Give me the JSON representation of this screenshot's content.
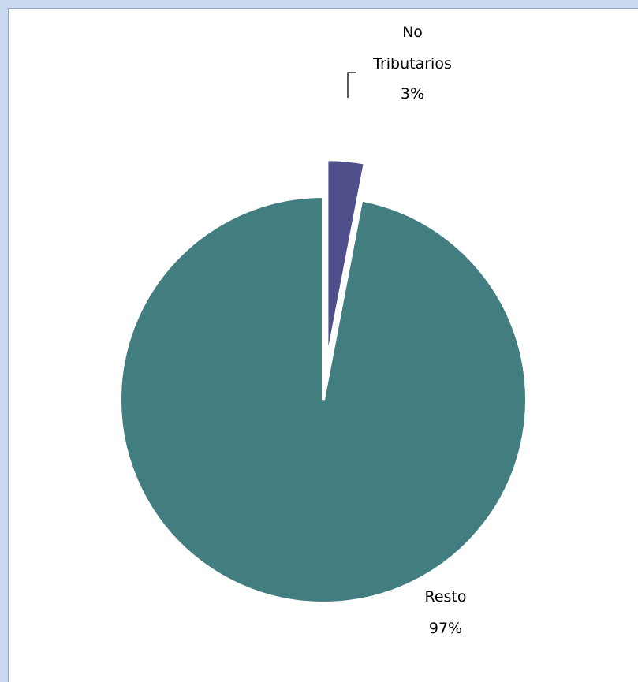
{
  "chart_data": {
    "type": "pie",
    "title": "",
    "legend": "none",
    "exploded": true,
    "start_angle": "12 o'clock, clockwise",
    "slices": [
      {
        "label_lines": [
          "No",
          "Tributarios"
        ],
        "value": 3,
        "value_label": "3%",
        "color": "#4f4f8b"
      },
      {
        "label_lines": [
          "Resto"
        ],
        "value": 97,
        "value_label": "97%",
        "color": "#427e80"
      }
    ]
  }
}
